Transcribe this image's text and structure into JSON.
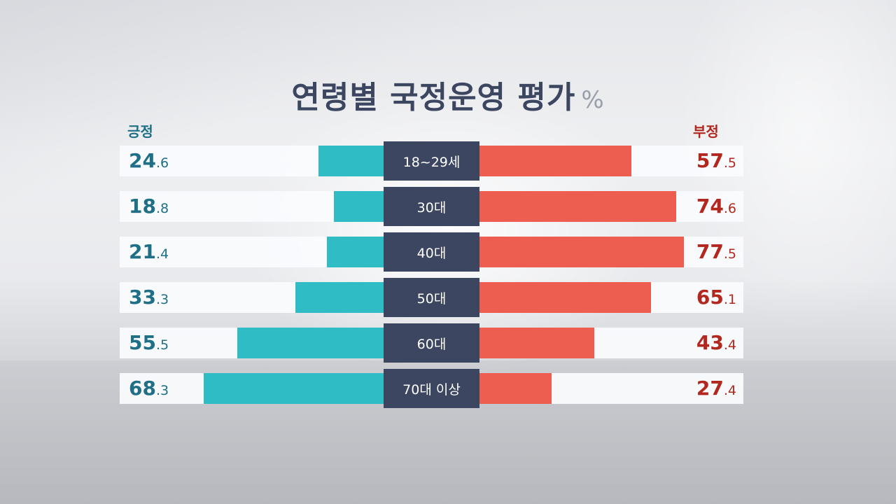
{
  "chart_data": {
    "type": "bar",
    "title": "연령별 국정운영 평가",
    "unit": "%",
    "categories": [
      "18~29세",
      "30대",
      "40대",
      "50대",
      "60대",
      "70대 이상"
    ],
    "series": [
      {
        "name": "긍정",
        "values": [
          24.6,
          18.8,
          21.4,
          33.3,
          55.5,
          68.3
        ],
        "color": "#2fbcc5"
      },
      {
        "name": "부정",
        "values": [
          57.5,
          74.6,
          77.5,
          65.1,
          43.4,
          27.4
        ],
        "color": "#ee5e50"
      }
    ]
  }
}
